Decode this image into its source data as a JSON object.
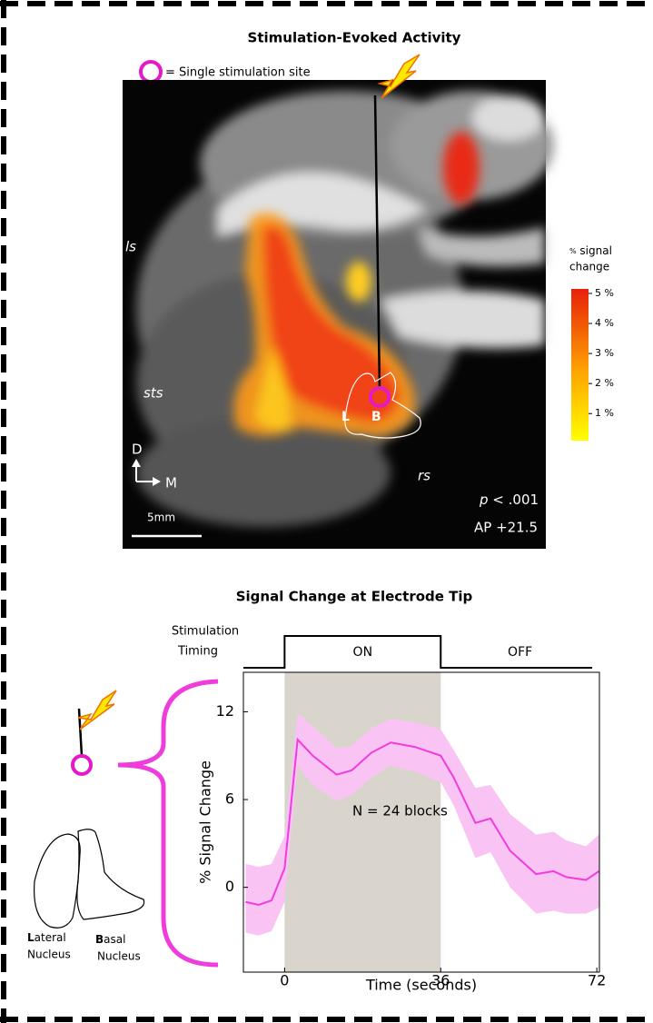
{
  "image_panel": {
    "title": "Stimulation-Evoked Activity",
    "legend_text": "= Single stimulation site",
    "sulcus_ls": "ls",
    "sulcus_sts": "sts",
    "sulcus_rs": "rs",
    "nucleus_L": "L",
    "nucleus_B": "B",
    "dir_D": "D",
    "dir_M": "M",
    "scale_bar": "5mm",
    "p_italic": "p",
    "p_rest": " < .001",
    "ap": "AP +21.5",
    "colorbar": {
      "title_small": "%",
      "title_line1": " signal",
      "title_line2": "change",
      "range": [
        0.1,
        5.15
      ],
      "ticks": [
        {
          "value": 1,
          "label": "1 %"
        },
        {
          "value": 2,
          "label": "2 %"
        },
        {
          "value": 3,
          "label": "3 %"
        },
        {
          "value": 4,
          "label": "4 %"
        },
        {
          "value": 5,
          "label": "5 %"
        }
      ]
    }
  },
  "diagram": {
    "lateral_initial": "L",
    "lateral_rest": "ateral",
    "lateral_line2": "Nucleus",
    "basal_initial": "B",
    "basal_rest": "asal",
    "basal_line2": "Nucleus"
  },
  "chart_data": {
    "type": "line",
    "title": "Signal Change at Electrode Tip",
    "timing_label_1": "Stimulation",
    "timing_label_2": "Timing",
    "on_label": "ON",
    "off_label": "OFF",
    "on_period": [
      0,
      36
    ],
    "annotation": "N = 24 blocks",
    "xlabel": "Time (seconds)",
    "ylabel": "% Signal Change",
    "xlim": [
      -9.5,
      72.6
    ],
    "ylim": [
      -5.8,
      14.7
    ],
    "xticks": [
      0,
      36,
      72
    ],
    "yticks": [
      0,
      6,
      12
    ],
    "x": [
      -9,
      -6,
      -3,
      0,
      3,
      6.5,
      12,
      15.5,
      20,
      24.5,
      30,
      36,
      39,
      44,
      47.5,
      52,
      58,
      62,
      65,
      69.5,
      72.5
    ],
    "series": [
      {
        "color": "#f03cdc",
        "values": [
          -1.0,
          -1.2,
          -0.9,
          1.3,
          10.1,
          9.0,
          7.7,
          8.0,
          9.2,
          9.9,
          9.6,
          9.0,
          7.5,
          4.4,
          4.7,
          2.5,
          0.9,
          1.1,
          0.7,
          0.5,
          1.1
        ],
        "upper": [
          1.6,
          1.4,
          1.6,
          3.5,
          11.9,
          11.0,
          9.5,
          9.7,
          10.9,
          11.5,
          11.3,
          10.8,
          9.4,
          6.8,
          7.0,
          5.0,
          3.6,
          3.8,
          3.2,
          2.8,
          3.6
        ],
        "lower": [
          -3.1,
          -3.3,
          -3.0,
          -1.0,
          8.3,
          7.0,
          5.9,
          6.3,
          7.5,
          8.3,
          7.9,
          7.2,
          5.6,
          2.0,
          2.4,
          0.0,
          -1.8,
          -1.6,
          -1.8,
          -1.8,
          -1.4
        ],
        "band_color": "#f9c4f3"
      }
    ],
    "shade_color": "#d9d5cc"
  }
}
